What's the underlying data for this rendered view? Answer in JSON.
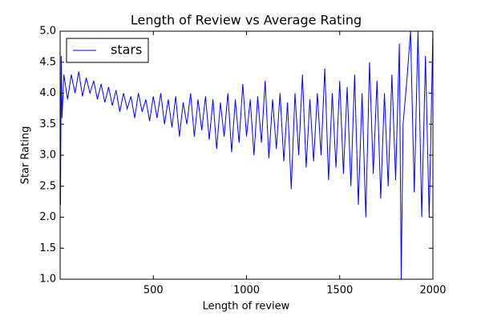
{
  "chart_data": {
    "type": "line",
    "title": "Length of Review vs Average Rating",
    "x_label": "Length of review",
    "y_label": "Star Rating",
    "x": [
      2,
      6,
      10,
      20,
      40,
      60,
      80,
      100,
      120,
      140,
      160,
      180,
      200,
      220,
      240,
      260,
      280,
      300,
      320,
      340,
      360,
      380,
      400,
      420,
      440,
      460,
      480,
      500,
      520,
      540,
      560,
      580,
      600,
      620,
      640,
      660,
      680,
      700,
      720,
      740,
      760,
      780,
      800,
      820,
      840,
      860,
      880,
      900,
      920,
      940,
      960,
      980,
      1000,
      1020,
      1040,
      1060,
      1080,
      1100,
      1120,
      1140,
      1160,
      1180,
      1200,
      1220,
      1240,
      1260,
      1280,
      1300,
      1320,
      1340,
      1360,
      1380,
      1400,
      1420,
      1440,
      1460,
      1480,
      1500,
      1520,
      1540,
      1560,
      1580,
      1600,
      1620,
      1640,
      1660,
      1680,
      1700,
      1720,
      1740,
      1760,
      1780,
      1800,
      1820,
      1830,
      1840,
      1860,
      1880,
      1900,
      1920,
      1940,
      1960,
      1980,
      2000
    ],
    "series": [
      {
        "name": "stars",
        "color": "#0000ff",
        "values": [
          2.2,
          4.6,
          3.6,
          4.3,
          3.9,
          4.3,
          4.0,
          4.35,
          3.95,
          4.25,
          4.0,
          4.2,
          3.9,
          4.15,
          3.85,
          4.1,
          3.8,
          4.05,
          3.7,
          4.0,
          3.75,
          3.95,
          3.6,
          4.0,
          3.7,
          3.9,
          3.55,
          3.95,
          3.6,
          4.0,
          3.5,
          3.9,
          3.45,
          3.95,
          3.3,
          3.85,
          3.5,
          4.0,
          3.3,
          3.9,
          3.4,
          3.95,
          3.25,
          3.9,
          3.1,
          3.85,
          3.3,
          4.0,
          3.05,
          3.9,
          3.2,
          4.15,
          3.3,
          3.9,
          3.0,
          3.95,
          3.2,
          4.2,
          2.95,
          3.9,
          3.1,
          4.0,
          2.9,
          3.85,
          2.45,
          4.0,
          3.0,
          4.3,
          2.8,
          3.9,
          2.9,
          4.0,
          3.0,
          4.4,
          2.6,
          4.0,
          2.8,
          4.2,
          2.7,
          4.1,
          2.5,
          4.3,
          2.2,
          4.0,
          2.0,
          4.5,
          2.7,
          4.2,
          2.3,
          4.0,
          2.5,
          4.3,
          2.6,
          4.8,
          1.0,
          3.5,
          4.2,
          5.0,
          2.4,
          5.0,
          2.0,
          4.6,
          2.0,
          5.0
        ]
      }
    ],
    "xlim": [
      0,
      2000
    ],
    "xticks": [
      500,
      1000,
      1500,
      2000
    ],
    "ylim": [
      1.0,
      5.0
    ],
    "yticks": [
      {
        "value": 1.0,
        "label": "1.0"
      },
      {
        "value": 1.5,
        "label": "1.5"
      },
      {
        "value": 2.0,
        "label": "2.0"
      },
      {
        "value": 2.5,
        "label": "2.5"
      },
      {
        "value": 3.0,
        "label": "3.0"
      },
      {
        "value": 3.5,
        "label": "3.5"
      },
      {
        "value": 4.0,
        "label": "4.0"
      },
      {
        "value": 4.5,
        "label": "4.5"
      },
      {
        "value": 5.0,
        "label": "5.0"
      }
    ],
    "grid": false,
    "legend": "upper-left"
  }
}
